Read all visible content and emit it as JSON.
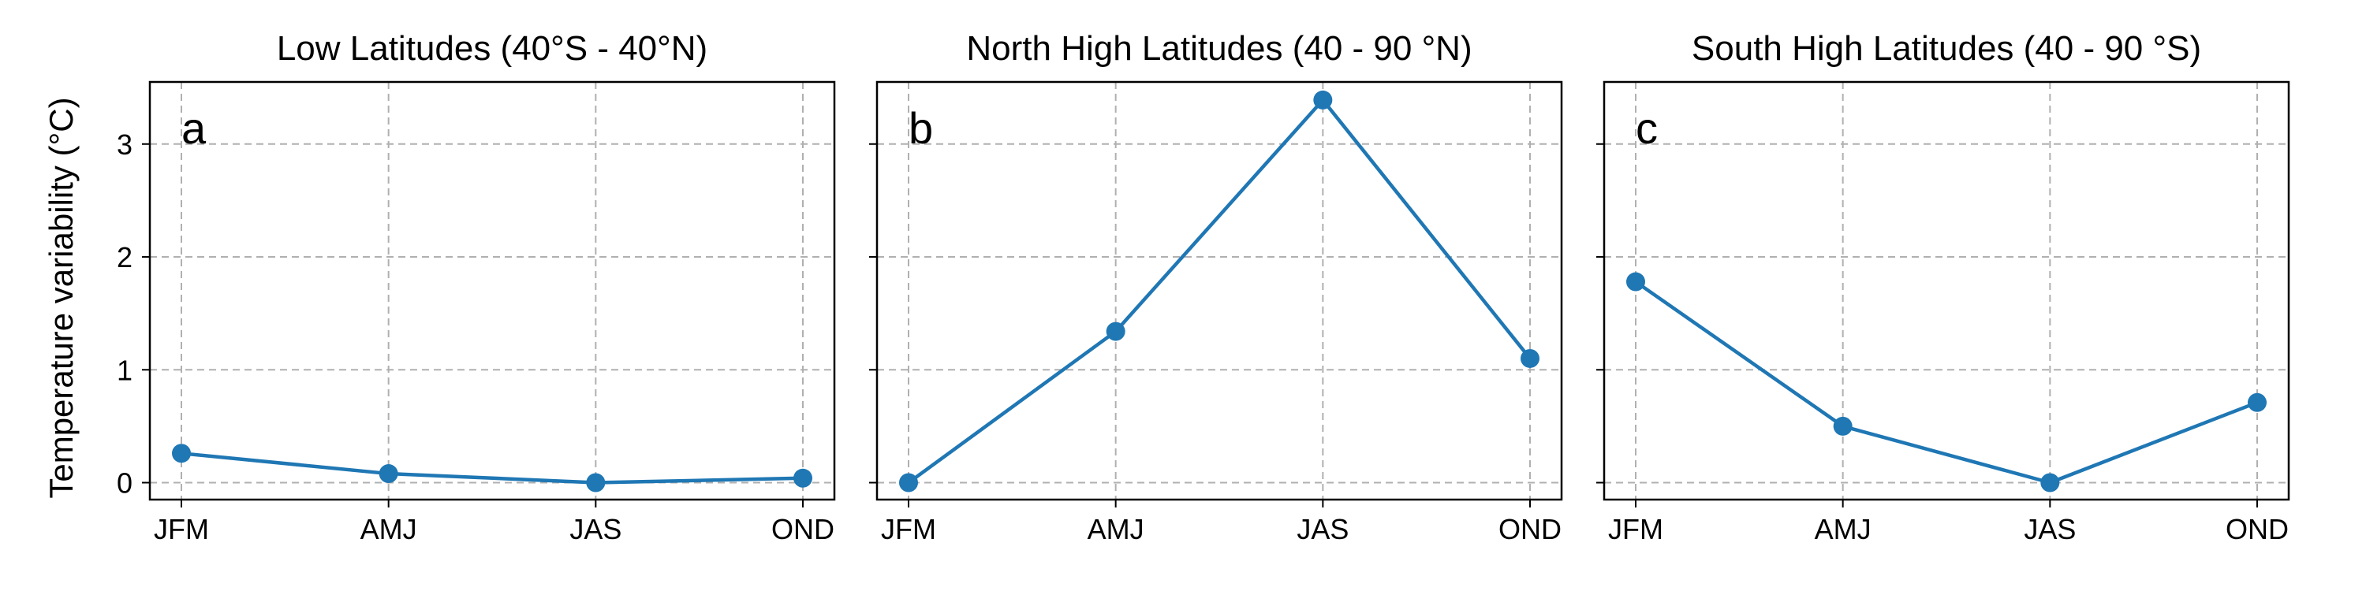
{
  "figure": {
    "ylabel": "Temperature variability (°C)",
    "line_color": "#1f77b4",
    "grid_color": "#b0b0b0"
  },
  "chart_data": [
    {
      "type": "line",
      "title": "Low Latitudes (40°S - 40°N)",
      "panel_letter": "a",
      "categories": [
        "JFM",
        "AMJ",
        "JAS",
        "OND"
      ],
      "series": [
        {
          "values": [
            0.26,
            0.08,
            0.0,
            0.04
          ]
        }
      ],
      "ylim": [
        -0.15,
        3.55
      ],
      "yticks": [
        0,
        1,
        2,
        3
      ],
      "grid": true
    },
    {
      "type": "line",
      "title": "North High Latitudes (40 - 90 °N)",
      "panel_letter": "b",
      "categories": [
        "JFM",
        "AMJ",
        "JAS",
        "OND"
      ],
      "series": [
        {
          "values": [
            0.0,
            1.34,
            3.39,
            1.1
          ]
        }
      ],
      "ylim": [
        -0.15,
        3.55
      ],
      "yticks": [
        0,
        1,
        2,
        3
      ],
      "grid": true
    },
    {
      "type": "line",
      "title": "South High Latitudes (40 - 90 °S)",
      "panel_letter": "c",
      "categories": [
        "JFM",
        "AMJ",
        "JAS",
        "OND"
      ],
      "series": [
        {
          "values": [
            1.78,
            0.5,
            0.0,
            0.71
          ]
        }
      ],
      "ylim": [
        -0.15,
        3.55
      ],
      "yticks": [
        0,
        1,
        2,
        3
      ],
      "grid": true
    }
  ]
}
